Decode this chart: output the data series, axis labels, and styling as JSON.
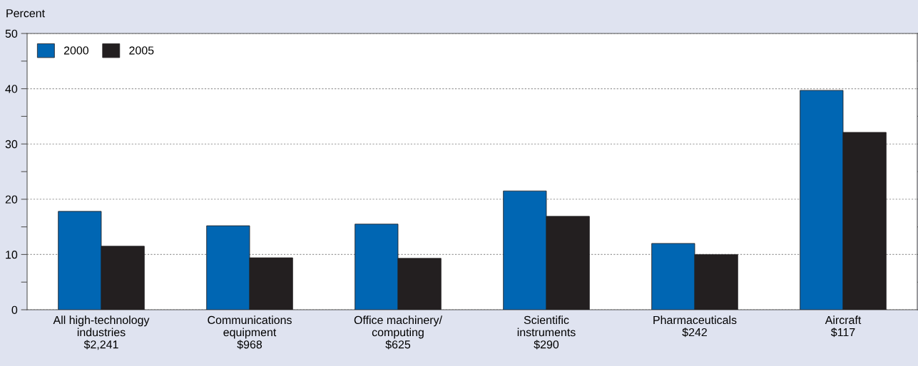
{
  "chart_data": {
    "type": "bar",
    "ylabel": "Percent",
    "categories": [
      "All high-technology\nindustries\n$2,241",
      "Communications\nequipment\n$968",
      "Office machinery/\ncomputing\n$625",
      "Scientific\ninstruments\n$290",
      "Pharmaceuticals\n$242",
      "Aircraft\n$117"
    ],
    "series": [
      {
        "name": "2000",
        "color": "#0066b3",
        "values": [
          17.8,
          15.2,
          15.5,
          21.5,
          12.0,
          39.7
        ]
      },
      {
        "name": "2005",
        "color": "#231f20",
        "values": [
          11.5,
          9.4,
          9.3,
          16.9,
          10.0,
          32.1
        ]
      }
    ],
    "ylim": [
      0,
      50
    ],
    "yticks": [
      0,
      {
        "value": 5,
        "label": null
      },
      10,
      {
        "value": 15,
        "label": null
      },
      20,
      {
        "value": 25,
        "label": null
      },
      30,
      {
        "value": 35,
        "label": null
      },
      40,
      {
        "value": 45,
        "label": null
      },
      50
    ],
    "grid": "y",
    "legend": "top left"
  }
}
